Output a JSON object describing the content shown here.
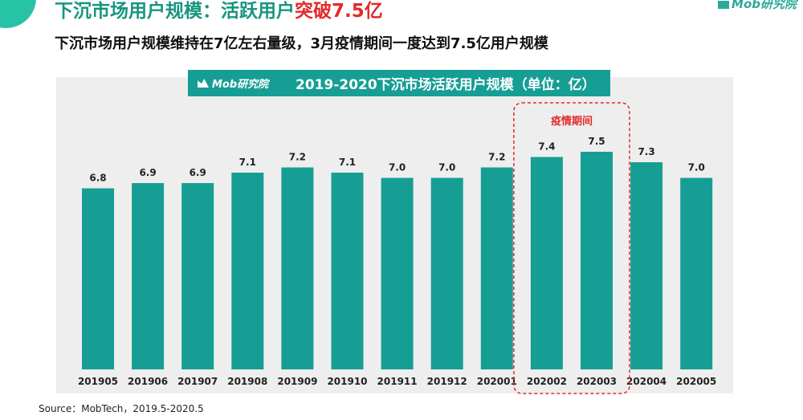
{
  "header": {
    "title_main": "下沉市场用户规模：活跃用户",
    "title_highlight": "突破7.5亿",
    "subtitle": "下沉市场用户规模维持在7亿左右量级，3月疫情期间一度达到7.5亿用户规模",
    "brand": "Mob研究院"
  },
  "chart_banner": {
    "logo": "Mob研究院",
    "title": "2019-2020下沉市场活跃用户规模（单位：亿）"
  },
  "chart_data": {
    "type": "bar",
    "title": "2019-2020下沉市场活跃用户规模（单位：亿）",
    "categories": [
      "201905",
      "201906",
      "201907",
      "201908",
      "201909",
      "201910",
      "201911",
      "201912",
      "202001",
      "202002",
      "202003",
      "202004",
      "202005"
    ],
    "values": [
      6.8,
      6.9,
      6.9,
      7.1,
      7.2,
      7.1,
      7.0,
      7.0,
      7.2,
      7.4,
      7.5,
      7.3,
      7.0
    ],
    "labels": [
      "6.8",
      "6.9",
      "6.9",
      "7.1",
      "7.2",
      "7.1",
      "7.0",
      "7.0",
      "7.2",
      "7.4",
      "7.5",
      "7.3",
      "7.0"
    ],
    "annotation": {
      "text": "疫情期间",
      "categories": [
        "202002",
        "202003"
      ]
    },
    "bar_color": "#169e95",
    "annotation_color": "#e32a2a",
    "grid": false,
    "legend": "none"
  },
  "footer": {
    "source": "Source：MobTech，2019.5-2020.5"
  }
}
